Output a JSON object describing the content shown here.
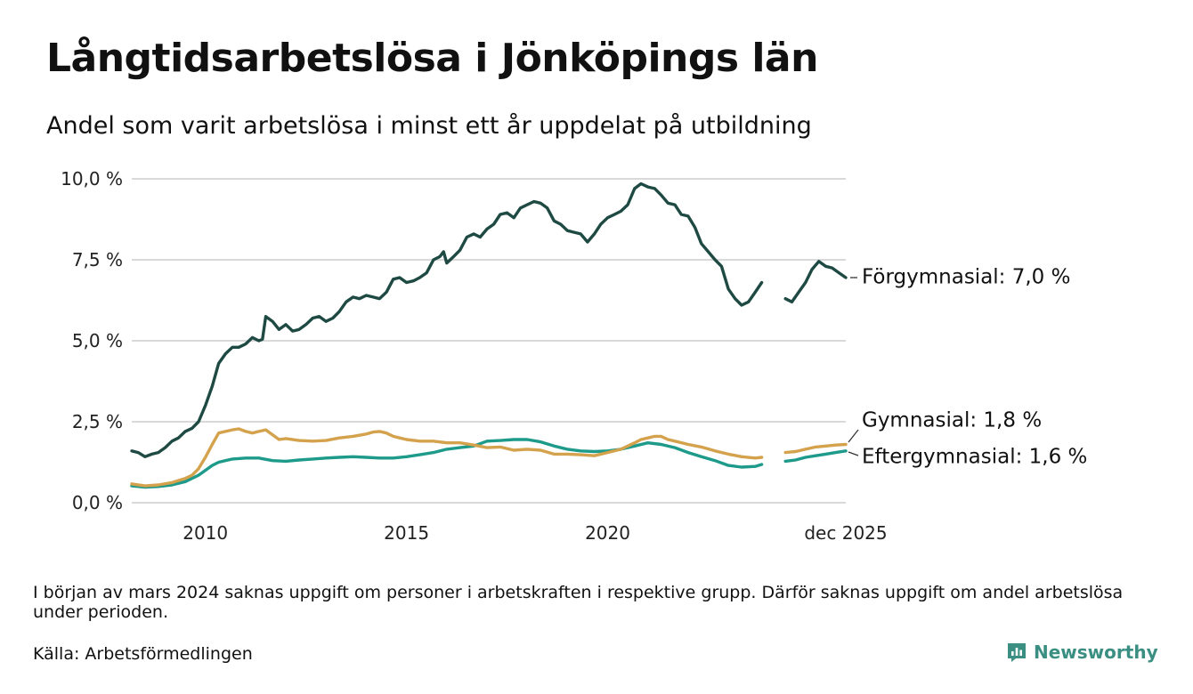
{
  "header": {
    "title": "Långtidsarbetslösa i Jönköpings län",
    "subtitle": "Andel som varit arbetslösa i minst ett år uppdelat på utbildning"
  },
  "footer": {
    "note": "I början av mars 2024 saknas uppgift om personer i arbetskraften i respektive grupp. Därför saknas uppgift om andel arbetslösa under perioden.",
    "source": "Källa: Arbetsförmedlingen",
    "brand": "Newsworthy",
    "brand_color": "#3a8f82"
  },
  "chart_data": {
    "type": "line",
    "title": "Långtidsarbetslösa i Jönköpings län",
    "xlabel": "",
    "ylabel": "",
    "xlim": [
      2008.17,
      2025.92
    ],
    "ylim": [
      0,
      10
    ],
    "grid": true,
    "x_ticks": [
      {
        "value": 2010,
        "label": "2010"
      },
      {
        "value": 2015,
        "label": "2015"
      },
      {
        "value": 2020,
        "label": "2020"
      },
      {
        "value": 2025.92,
        "label": "dec 2025"
      }
    ],
    "y_ticks": [
      {
        "value": 0,
        "label": "0,0 %"
      },
      {
        "value": 2.5,
        "label": "2,5 %"
      },
      {
        "value": 5,
        "label": "5,0 %"
      },
      {
        "value": 7.5,
        "label": "7,5 %"
      },
      {
        "value": 10,
        "label": "10,0 %"
      }
    ],
    "gap": [
      2024.17,
      2024.42
    ],
    "series": [
      {
        "name": "Förgymnasial",
        "label": "Förgymnasial: 7,0 %",
        "color": "#1e4a43",
        "points": [
          [
            2008.17,
            1.6
          ],
          [
            2008.33,
            1.55
          ],
          [
            2008.5,
            1.42
          ],
          [
            2008.67,
            1.5
          ],
          [
            2008.83,
            1.55
          ],
          [
            2009,
            1.7
          ],
          [
            2009.17,
            1.9
          ],
          [
            2009.33,
            2.0
          ],
          [
            2009.5,
            2.2
          ],
          [
            2009.67,
            2.3
          ],
          [
            2009.83,
            2.5
          ],
          [
            2010,
            3.0
          ],
          [
            2010.17,
            3.6
          ],
          [
            2010.33,
            4.3
          ],
          [
            2010.5,
            4.6
          ],
          [
            2010.67,
            4.8
          ],
          [
            2010.83,
            4.8
          ],
          [
            2011,
            4.9
          ],
          [
            2011.17,
            5.1
          ],
          [
            2011.33,
            5.0
          ],
          [
            2011.42,
            5.05
          ],
          [
            2011.5,
            5.75
          ],
          [
            2011.67,
            5.6
          ],
          [
            2011.83,
            5.35
          ],
          [
            2012,
            5.5
          ],
          [
            2012.17,
            5.3
          ],
          [
            2012.33,
            5.35
          ],
          [
            2012.5,
            5.5
          ],
          [
            2012.67,
            5.7
          ],
          [
            2012.83,
            5.75
          ],
          [
            2013,
            5.6
          ],
          [
            2013.17,
            5.7
          ],
          [
            2013.33,
            5.9
          ],
          [
            2013.5,
            6.2
          ],
          [
            2013.67,
            6.35
          ],
          [
            2013.83,
            6.3
          ],
          [
            2014,
            6.4
          ],
          [
            2014.17,
            6.35
          ],
          [
            2014.33,
            6.3
          ],
          [
            2014.5,
            6.5
          ],
          [
            2014.67,
            6.9
          ],
          [
            2014.83,
            6.95
          ],
          [
            2015,
            6.8
          ],
          [
            2015.17,
            6.85
          ],
          [
            2015.33,
            6.95
          ],
          [
            2015.5,
            7.1
          ],
          [
            2015.67,
            7.5
          ],
          [
            2015.83,
            7.6
          ],
          [
            2015.92,
            7.75
          ],
          [
            2016,
            7.4
          ],
          [
            2016.17,
            7.6
          ],
          [
            2016.33,
            7.8
          ],
          [
            2016.5,
            8.2
          ],
          [
            2016.67,
            8.3
          ],
          [
            2016.83,
            8.2
          ],
          [
            2017,
            8.45
          ],
          [
            2017.17,
            8.6
          ],
          [
            2017.33,
            8.9
          ],
          [
            2017.5,
            8.95
          ],
          [
            2017.67,
            8.8
          ],
          [
            2017.83,
            9.1
          ],
          [
            2018,
            9.2
          ],
          [
            2018.17,
            9.3
          ],
          [
            2018.33,
            9.25
          ],
          [
            2018.5,
            9.1
          ],
          [
            2018.67,
            8.7
          ],
          [
            2018.83,
            8.6
          ],
          [
            2019,
            8.4
          ],
          [
            2019.17,
            8.35
          ],
          [
            2019.33,
            8.3
          ],
          [
            2019.5,
            8.05
          ],
          [
            2019.67,
            8.3
          ],
          [
            2019.83,
            8.6
          ],
          [
            2020,
            8.8
          ],
          [
            2020.17,
            8.9
          ],
          [
            2020.33,
            9.0
          ],
          [
            2020.5,
            9.2
          ],
          [
            2020.67,
            9.7
          ],
          [
            2020.83,
            9.85
          ],
          [
            2021,
            9.75
          ],
          [
            2021.17,
            9.7
          ],
          [
            2021.33,
            9.5
          ],
          [
            2021.5,
            9.25
          ],
          [
            2021.67,
            9.2
          ],
          [
            2021.83,
            8.9
          ],
          [
            2022,
            8.85
          ],
          [
            2022.17,
            8.5
          ],
          [
            2022.33,
            8.0
          ],
          [
            2022.5,
            7.75
          ],
          [
            2022.67,
            7.5
          ],
          [
            2022.83,
            7.3
          ],
          [
            2023,
            6.6
          ],
          [
            2023.17,
            6.3
          ],
          [
            2023.33,
            6.1
          ],
          [
            2023.5,
            6.2
          ],
          [
            2023.67,
            6.5
          ],
          [
            2023.83,
            6.8
          ],
          [
            2024.42,
            6.3
          ],
          [
            2024.58,
            6.2
          ],
          [
            2024.75,
            6.5
          ],
          [
            2024.92,
            6.8
          ],
          [
            2025.08,
            7.2
          ],
          [
            2025.25,
            7.45
          ],
          [
            2025.42,
            7.3
          ],
          [
            2025.58,
            7.25
          ],
          [
            2025.75,
            7.1
          ],
          [
            2025.92,
            6.95
          ]
        ]
      },
      {
        "name": "Gymnasial",
        "label": "Gymnasial: 1,8 %",
        "color": "#d4a24c",
        "points": [
          [
            2008.17,
            0.58
          ],
          [
            2008.5,
            0.52
          ],
          [
            2008.83,
            0.55
          ],
          [
            2009.17,
            0.62
          ],
          [
            2009.5,
            0.75
          ],
          [
            2009.67,
            0.85
          ],
          [
            2009.83,
            1.05
          ],
          [
            2010,
            1.4
          ],
          [
            2010.17,
            1.8
          ],
          [
            2010.33,
            2.15
          ],
          [
            2010.5,
            2.2
          ],
          [
            2010.67,
            2.25
          ],
          [
            2010.83,
            2.28
          ],
          [
            2011,
            2.2
          ],
          [
            2011.17,
            2.15
          ],
          [
            2011.33,
            2.2
          ],
          [
            2011.5,
            2.25
          ],
          [
            2011.67,
            2.1
          ],
          [
            2011.83,
            1.95
          ],
          [
            2012,
            1.98
          ],
          [
            2012.33,
            1.92
          ],
          [
            2012.67,
            1.9
          ],
          [
            2013,
            1.92
          ],
          [
            2013.33,
            2.0
          ],
          [
            2013.67,
            2.05
          ],
          [
            2014,
            2.12
          ],
          [
            2014.17,
            2.18
          ],
          [
            2014.33,
            2.2
          ],
          [
            2014.5,
            2.15
          ],
          [
            2014.67,
            2.05
          ],
          [
            2014.83,
            2.0
          ],
          [
            2015,
            1.95
          ],
          [
            2015.33,
            1.9
          ],
          [
            2015.67,
            1.9
          ],
          [
            2016,
            1.85
          ],
          [
            2016.33,
            1.85
          ],
          [
            2016.67,
            1.78
          ],
          [
            2017,
            1.7
          ],
          [
            2017.33,
            1.72
          ],
          [
            2017.67,
            1.62
          ],
          [
            2018,
            1.65
          ],
          [
            2018.33,
            1.62
          ],
          [
            2018.67,
            1.5
          ],
          [
            2019,
            1.5
          ],
          [
            2019.33,
            1.48
          ],
          [
            2019.67,
            1.45
          ],
          [
            2020,
            1.55
          ],
          [
            2020.33,
            1.65
          ],
          [
            2020.67,
            1.85
          ],
          [
            2020.83,
            1.95
          ],
          [
            2021,
            2.0
          ],
          [
            2021.17,
            2.05
          ],
          [
            2021.33,
            2.05
          ],
          [
            2021.5,
            1.95
          ],
          [
            2021.67,
            1.9
          ],
          [
            2022,
            1.8
          ],
          [
            2022.33,
            1.72
          ],
          [
            2022.67,
            1.6
          ],
          [
            2023,
            1.5
          ],
          [
            2023.33,
            1.42
          ],
          [
            2023.67,
            1.38
          ],
          [
            2023.83,
            1.4
          ],
          [
            2024.42,
            1.55
          ],
          [
            2024.67,
            1.58
          ],
          [
            2024.92,
            1.65
          ],
          [
            2025.17,
            1.72
          ],
          [
            2025.42,
            1.75
          ],
          [
            2025.67,
            1.78
          ],
          [
            2025.92,
            1.8
          ]
        ]
      },
      {
        "name": "Eftergymnasial",
        "label": "Eftergymnasial: 1,6 %",
        "color": "#1d9a8a",
        "points": [
          [
            2008.17,
            0.52
          ],
          [
            2008.5,
            0.48
          ],
          [
            2008.83,
            0.5
          ],
          [
            2009.17,
            0.55
          ],
          [
            2009.5,
            0.65
          ],
          [
            2009.83,
            0.85
          ],
          [
            2010,
            1.0
          ],
          [
            2010.17,
            1.15
          ],
          [
            2010.33,
            1.25
          ],
          [
            2010.67,
            1.35
          ],
          [
            2011,
            1.38
          ],
          [
            2011.33,
            1.38
          ],
          [
            2011.67,
            1.3
          ],
          [
            2012,
            1.28
          ],
          [
            2012.33,
            1.32
          ],
          [
            2012.67,
            1.35
          ],
          [
            2013,
            1.38
          ],
          [
            2013.33,
            1.4
          ],
          [
            2013.67,
            1.42
          ],
          [
            2014,
            1.4
          ],
          [
            2014.33,
            1.38
          ],
          [
            2014.67,
            1.38
          ],
          [
            2015,
            1.42
          ],
          [
            2015.33,
            1.48
          ],
          [
            2015.67,
            1.55
          ],
          [
            2016,
            1.65
          ],
          [
            2016.33,
            1.7
          ],
          [
            2016.67,
            1.75
          ],
          [
            2017,
            1.9
          ],
          [
            2017.33,
            1.92
          ],
          [
            2017.67,
            1.95
          ],
          [
            2018,
            1.95
          ],
          [
            2018.33,
            1.88
          ],
          [
            2018.67,
            1.75
          ],
          [
            2019,
            1.65
          ],
          [
            2019.33,
            1.6
          ],
          [
            2019.67,
            1.58
          ],
          [
            2020,
            1.6
          ],
          [
            2020.33,
            1.65
          ],
          [
            2020.67,
            1.75
          ],
          [
            2021,
            1.85
          ],
          [
            2021.33,
            1.8
          ],
          [
            2021.67,
            1.7
          ],
          [
            2022,
            1.55
          ],
          [
            2022.33,
            1.42
          ],
          [
            2022.67,
            1.3
          ],
          [
            2023,
            1.15
          ],
          [
            2023.33,
            1.1
          ],
          [
            2023.67,
            1.12
          ],
          [
            2023.83,
            1.18
          ],
          [
            2024.42,
            1.28
          ],
          [
            2024.67,
            1.32
          ],
          [
            2024.92,
            1.4
          ],
          [
            2025.17,
            1.45
          ],
          [
            2025.42,
            1.5
          ],
          [
            2025.67,
            1.55
          ],
          [
            2025.92,
            1.6
          ]
        ]
      }
    ]
  }
}
